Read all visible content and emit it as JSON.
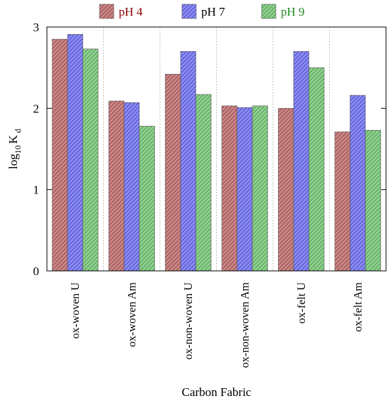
{
  "chart_data": {
    "type": "bar",
    "title": "",
    "xlabel": "Carbon Fabric",
    "ylabel": {
      "main": "log",
      "sub1": "10",
      "mid": "K",
      "sub2": "d"
    },
    "ylim": [
      0,
      3
    ],
    "yticks": [
      0,
      1,
      2,
      3
    ],
    "grid": "vertical dashed separators between categories",
    "legend_position": "top",
    "categories": [
      "ox-woven U",
      "ox-woven Am",
      "ox-non-woven U",
      "ox-non-woven  Am",
      "ox-felt U",
      "ox-felt Am"
    ],
    "series": [
      {
        "name": "pH 4",
        "color": "#b56060",
        "label_color": "#8b0000",
        "values": [
          2.85,
          2.09,
          2.42,
          2.03,
          2.0,
          1.71
        ]
      },
      {
        "name": "pH 7",
        "color": "#6a6ae0",
        "label_color": "#000000",
        "values": [
          2.91,
          2.07,
          2.7,
          2.01,
          2.7,
          2.16
        ]
      },
      {
        "name": "pH 9",
        "color": "#6fb870",
        "label_color": "#228b22",
        "values": [
          2.73,
          1.78,
          2.17,
          2.03,
          2.5,
          1.73
        ]
      }
    ]
  }
}
